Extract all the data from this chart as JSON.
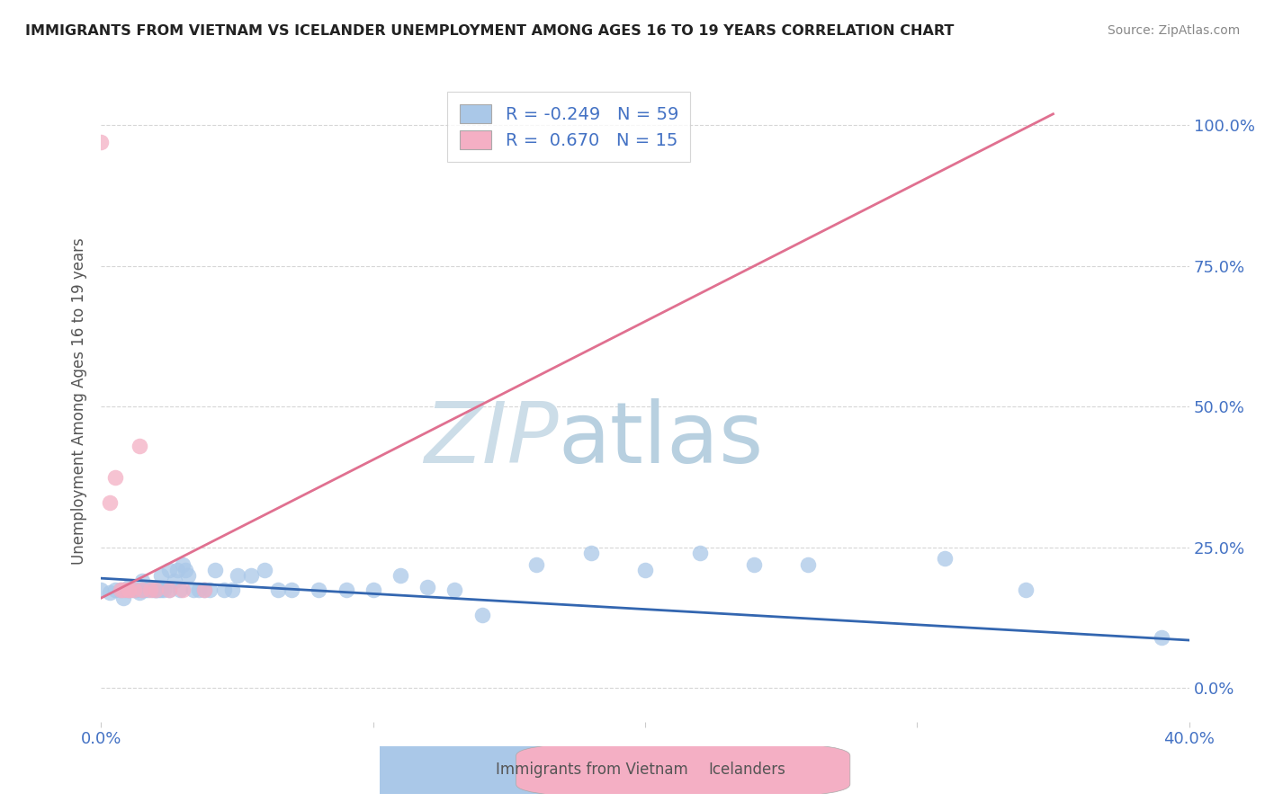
{
  "title": "IMMIGRANTS FROM VIETNAM VS ICELANDER UNEMPLOYMENT AMONG AGES 16 TO 19 YEARS CORRELATION CHART",
  "source": "Source: ZipAtlas.com",
  "ylabel": "Unemployment Among Ages 16 to 19 years",
  "y_tick_labels_right": [
    "0.0%",
    "25.0%",
    "50.0%",
    "75.0%",
    "100.0%"
  ],
  "xlim": [
    0.0,
    0.4
  ],
  "ylim": [
    -0.06,
    1.08
  ],
  "blue_color": "#aac8e8",
  "pink_color": "#f4afc4",
  "blue_line_color": "#3366b0",
  "pink_line_color": "#e07090",
  "title_color": "#222222",
  "source_color": "#888888",
  "watermark_zip_color": "#ccdde8",
  "watermark_atlas_color": "#b8d0e0",
  "axis_label_color": "#555555",
  "tick_color": "#4472c4",
  "grid_color": "#cccccc",
  "blue_scatter_x": [
    0.0,
    0.003,
    0.005,
    0.007,
    0.008,
    0.009,
    0.01,
    0.01,
    0.011,
    0.012,
    0.013,
    0.014,
    0.015,
    0.015,
    0.016,
    0.017,
    0.018,
    0.019,
    0.02,
    0.02,
    0.021,
    0.022,
    0.022,
    0.023,
    0.025,
    0.025,
    0.027,
    0.028,
    0.029,
    0.03,
    0.031,
    0.032,
    0.034,
    0.036,
    0.038,
    0.04,
    0.042,
    0.045,
    0.048,
    0.05,
    0.055,
    0.06,
    0.065,
    0.07,
    0.08,
    0.09,
    0.1,
    0.11,
    0.12,
    0.13,
    0.14,
    0.16,
    0.18,
    0.2,
    0.22,
    0.24,
    0.26,
    0.31,
    0.34,
    0.39
  ],
  "blue_scatter_y": [
    0.175,
    0.17,
    0.175,
    0.175,
    0.16,
    0.175,
    0.18,
    0.175,
    0.175,
    0.175,
    0.175,
    0.17,
    0.19,
    0.175,
    0.175,
    0.175,
    0.18,
    0.175,
    0.175,
    0.175,
    0.175,
    0.175,
    0.2,
    0.175,
    0.21,
    0.175,
    0.19,
    0.21,
    0.175,
    0.22,
    0.21,
    0.2,
    0.175,
    0.175,
    0.175,
    0.175,
    0.21,
    0.175,
    0.175,
    0.2,
    0.2,
    0.21,
    0.175,
    0.175,
    0.175,
    0.175,
    0.175,
    0.2,
    0.18,
    0.175,
    0.13,
    0.22,
    0.24,
    0.21,
    0.24,
    0.22,
    0.22,
    0.23,
    0.175,
    0.09
  ],
  "pink_scatter_x": [
    0.0,
    0.003,
    0.005,
    0.007,
    0.008,
    0.01,
    0.01,
    0.012,
    0.014,
    0.015,
    0.018,
    0.02,
    0.025,
    0.03,
    0.038
  ],
  "pink_scatter_y": [
    0.97,
    0.33,
    0.375,
    0.175,
    0.175,
    0.175,
    0.175,
    0.175,
    0.43,
    0.175,
    0.175,
    0.175,
    0.175,
    0.175,
    0.175
  ],
  "blue_trend_x0": 0.0,
  "blue_trend_x1": 0.4,
  "blue_trend_y0": 0.195,
  "blue_trend_y1": 0.085,
  "pink_trend_x0": 0.0,
  "pink_trend_x1": 0.35,
  "pink_trend_y0": 0.16,
  "pink_trend_y1": 1.02
}
